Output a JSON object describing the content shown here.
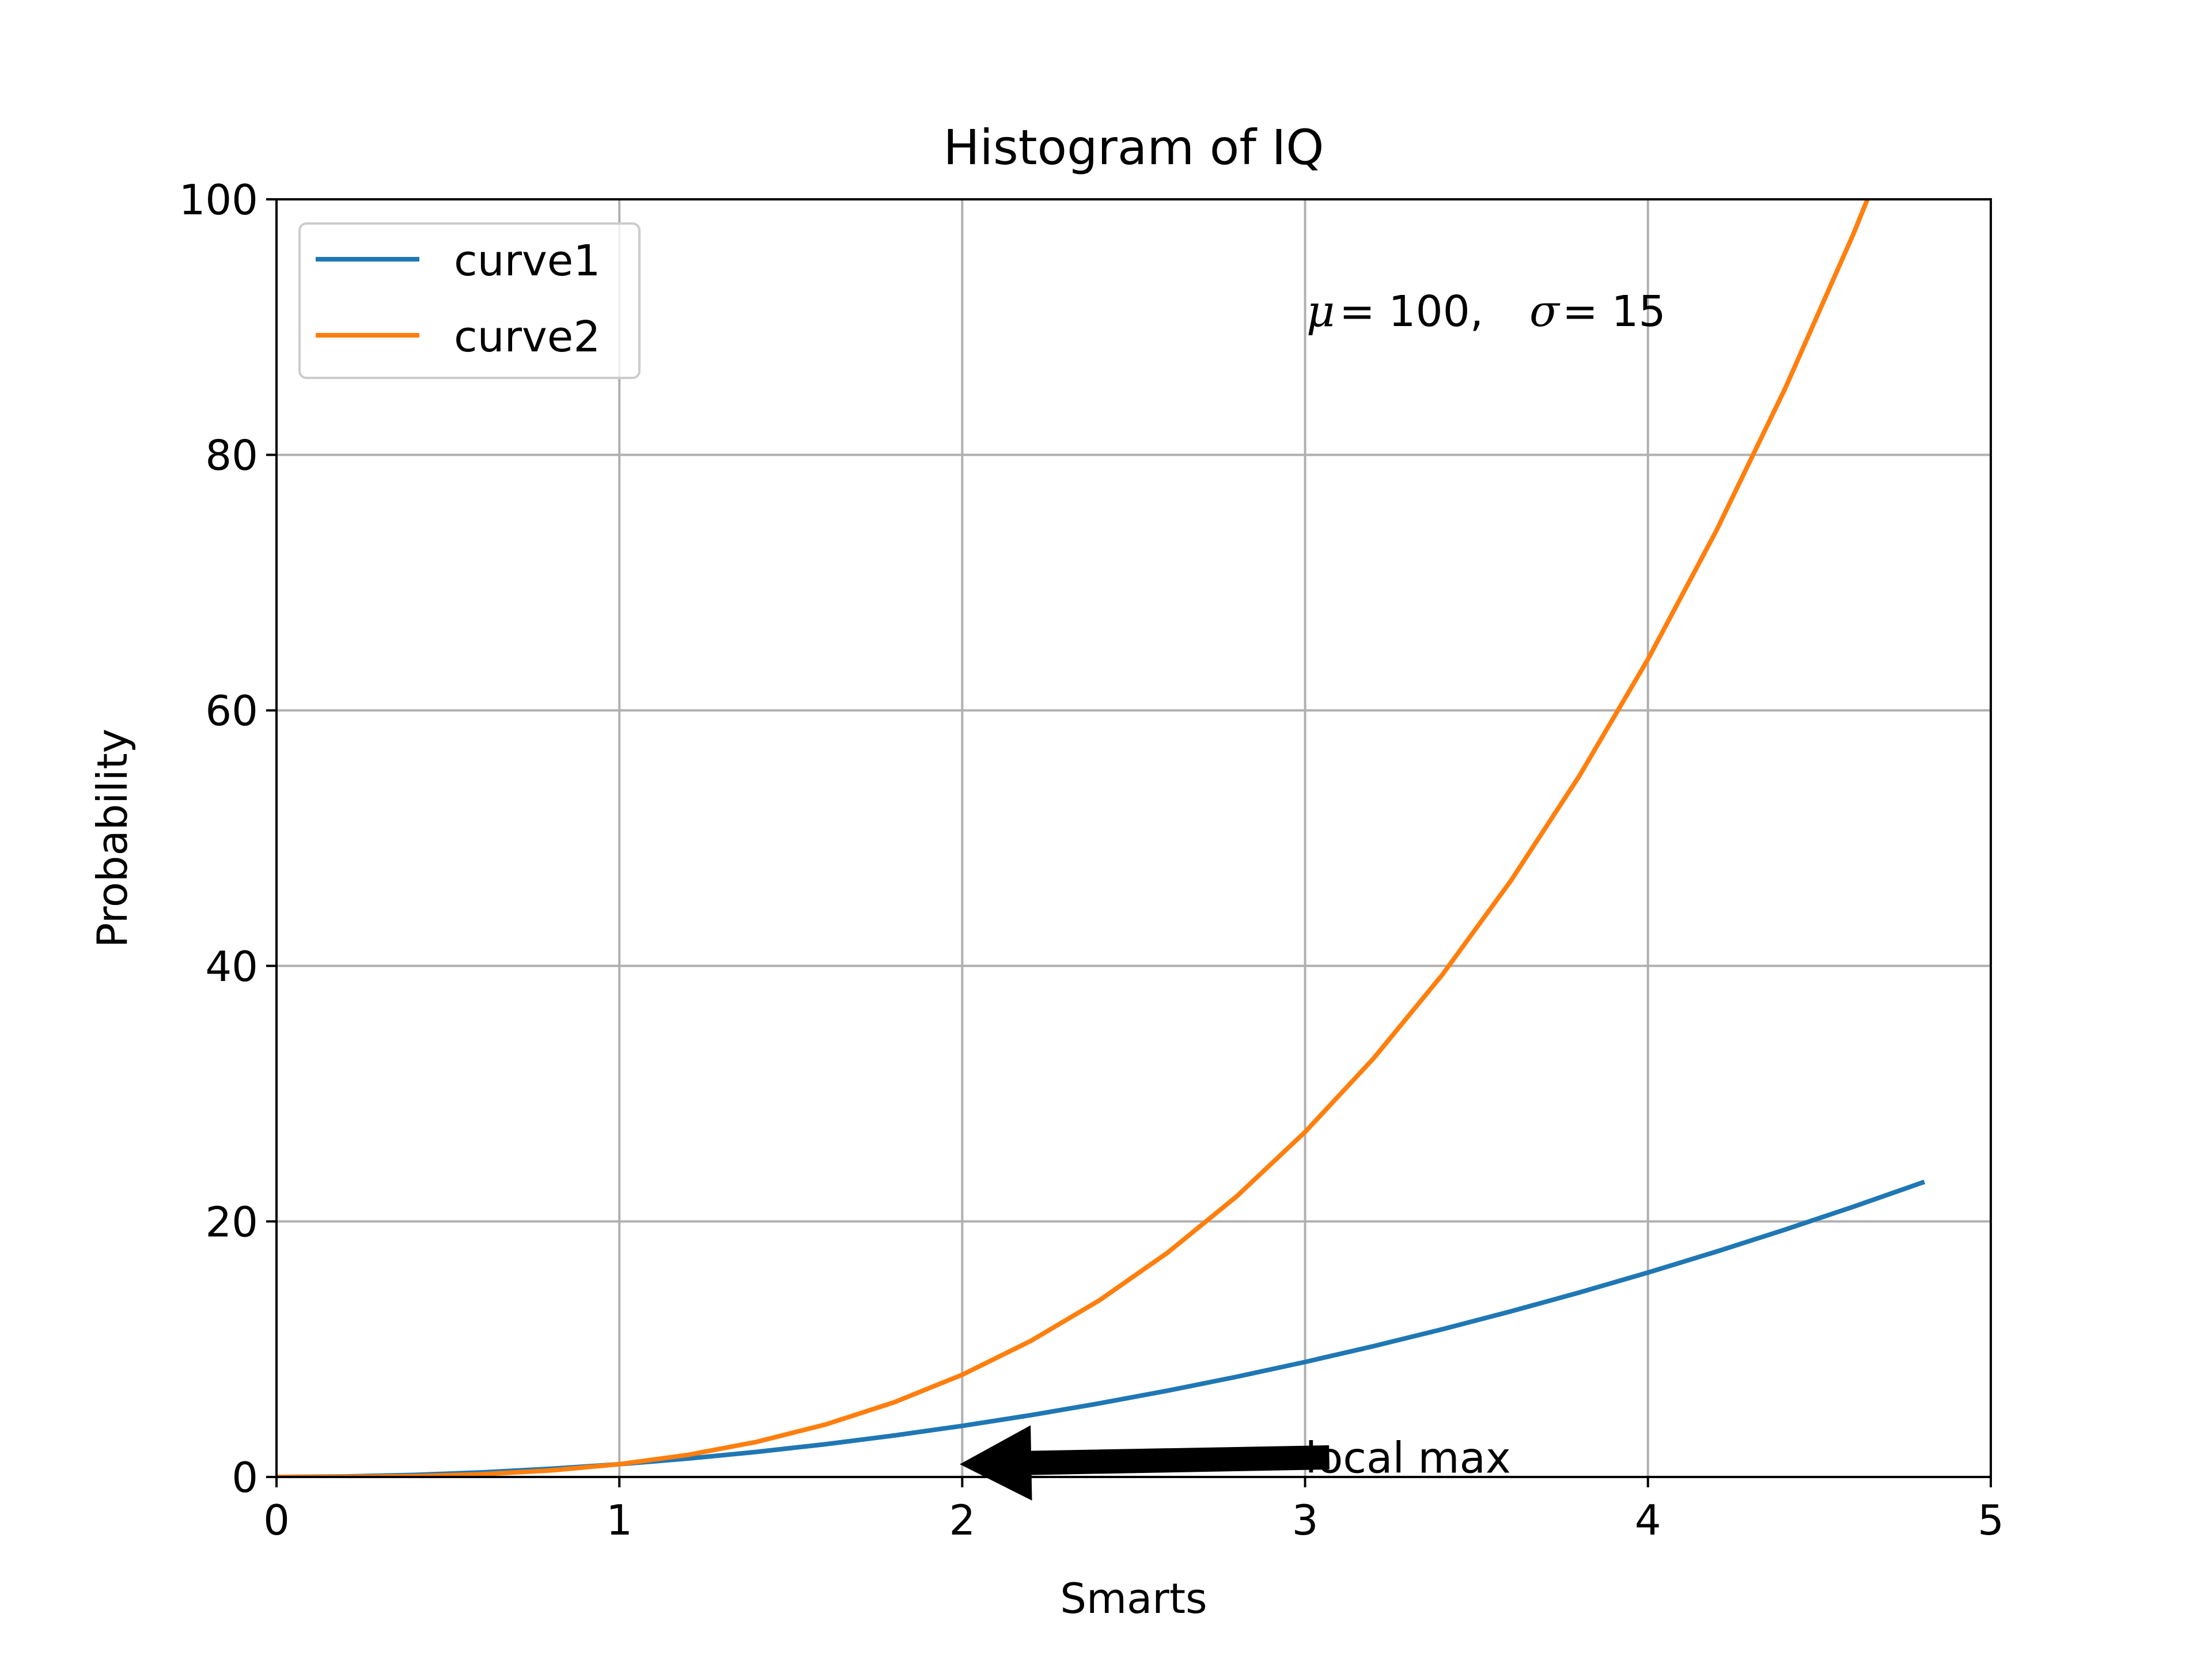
{
  "chart_data": {
    "type": "line",
    "title": "Histogram of IQ",
    "xlabel": "Smarts",
    "ylabel": "Probability",
    "xlim": [
      0,
      5
    ],
    "ylim": [
      0,
      100
    ],
    "xticks": [
      0,
      1,
      2,
      3,
      4,
      5
    ],
    "yticks": [
      0,
      20,
      40,
      60,
      80,
      100
    ],
    "xtick_labels": [
      "0",
      "1",
      "2",
      "3",
      "4",
      "5"
    ],
    "ytick_labels": [
      "0",
      "20",
      "40",
      "60",
      "80",
      "100"
    ],
    "grid": true,
    "legend_position": "upper left",
    "x": [
      0,
      0.2,
      0.4,
      0.6,
      0.8,
      1.0,
      1.2,
      1.4,
      1.6,
      1.8,
      2.0,
      2.2,
      2.4,
      2.6,
      2.8,
      3.0,
      3.2,
      3.4,
      3.6,
      3.8,
      4.0,
      4.2,
      4.4,
      4.6,
      4.8
    ],
    "series": [
      {
        "name": "curve1",
        "color": "#1f77b4",
        "values": [
          0,
          0.04,
          0.16,
          0.36,
          0.64,
          1.0,
          1.44,
          1.96,
          2.56,
          3.24,
          4.0,
          4.84,
          5.76,
          6.76,
          7.84,
          9.0,
          10.24,
          11.56,
          12.96,
          14.44,
          16.0,
          17.64,
          19.36,
          21.16,
          23.04
        ]
      },
      {
        "name": "curve2",
        "color": "#ff7f0e",
        "values": [
          0,
          0.008,
          0.064,
          0.216,
          0.512,
          1.0,
          1.728,
          2.744,
          4.096,
          5.832,
          8.0,
          10.648,
          13.824,
          17.576,
          21.952,
          27.0,
          32.768,
          39.304,
          46.656,
          54.872,
          64.0,
          74.088,
          85.184,
          97.336,
          110.592
        ]
      }
    ],
    "annotations": [
      {
        "text": "local max",
        "xy": [
          2,
          1
        ],
        "xytext": [
          3,
          1.5
        ],
        "arrow": true
      }
    ],
    "math_text": {
      "mu_symbol": "μ",
      "mu_value": "= 100,",
      "sigma_symbol": "σ",
      "sigma_value": "= 15",
      "anchor": [
        3,
        90
      ]
    }
  }
}
